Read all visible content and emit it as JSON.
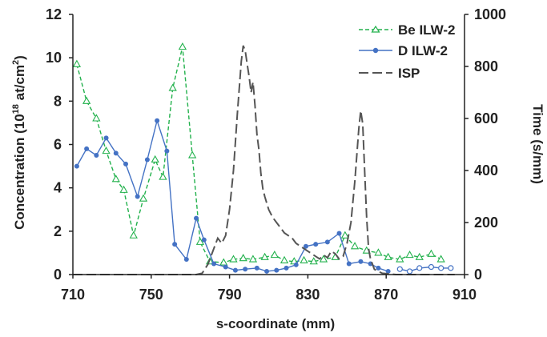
{
  "chart_data": {
    "type": "line",
    "xlabel": "s-coordinate (mm)",
    "ylabel_left_parts": [
      "Concentration (10",
      "18",
      " at/cm",
      "2",
      ")"
    ],
    "ylabel_right": "Time (s/mm)",
    "xlim": [
      710,
      910
    ],
    "ylim_left": [
      0,
      12
    ],
    "ylim_right": [
      0,
      1000
    ],
    "x_ticks": [
      710,
      750,
      790,
      830,
      870,
      910
    ],
    "y_ticks_left": [
      0,
      2,
      4,
      6,
      8,
      10,
      12
    ],
    "y_ticks_right": [
      0,
      200,
      400,
      600,
      800,
      1000
    ],
    "legend_position": "top-right",
    "colors": {
      "be": "#22b14c",
      "d": "#4472c4",
      "isp": "#555555",
      "axis": "#222222"
    },
    "series": [
      {
        "name": "Be ILW-2",
        "axis": "left",
        "style": "dashed",
        "marker": "open-triangle",
        "color": "#22b14c",
        "x": [
          712,
          717,
          722,
          727,
          732,
          736,
          741,
          746,
          752,
          756,
          761,
          766,
          771,
          775,
          780,
          787,
          792,
          797,
          802,
          808,
          813,
          818,
          823,
          828,
          833,
          838,
          844,
          849,
          854,
          860,
          866,
          871,
          877,
          882,
          887,
          893,
          898
        ],
        "y": [
          9.7,
          8.0,
          7.2,
          5.7,
          4.4,
          3.9,
          1.8,
          3.5,
          5.3,
          4.5,
          8.6,
          10.5,
          5.5,
          1.5,
          0.6,
          0.55,
          0.7,
          0.75,
          0.7,
          0.8,
          0.9,
          0.65,
          0.6,
          0.65,
          0.6,
          0.7,
          0.8,
          1.8,
          1.3,
          1.1,
          1.0,
          0.8,
          0.7,
          0.9,
          0.8,
          0.95,
          0.7
        ]
      },
      {
        "name": "D ILW-2",
        "axis": "left",
        "style": "solid",
        "marker": "filled-circle",
        "color": "#4472c4",
        "x": [
          712,
          717,
          722,
          727,
          732,
          737,
          743,
          748,
          753,
          758,
          762,
          768,
          773,
          777,
          782,
          788,
          793,
          798,
          804,
          809,
          814,
          819,
          824,
          829,
          834,
          840,
          846,
          851,
          857,
          862,
          866,
          871
        ],
        "y": [
          5.0,
          5.8,
          5.5,
          6.3,
          5.6,
          5.1,
          3.6,
          5.3,
          7.1,
          5.7,
          1.4,
          0.7,
          2.6,
          1.6,
          0.5,
          0.35,
          0.2,
          0.25,
          0.3,
          0.15,
          0.2,
          0.3,
          0.45,
          1.3,
          1.4,
          1.5,
          1.9,
          0.5,
          0.6,
          0.5,
          0.3,
          0.15
        ]
      },
      {
        "name": "D ILW-2 (open)",
        "axis": "left",
        "style": "solid",
        "marker": "open-circle",
        "color": "#4472c4",
        "x": [
          877,
          882,
          887,
          893,
          898,
          903
        ],
        "y": [
          0.25,
          0.15,
          0.3,
          0.35,
          0.3,
          0.3
        ]
      },
      {
        "name": "ISP",
        "axis": "right",
        "style": "long-dash",
        "marker": "none",
        "color": "#555555",
        "x": [
          710,
          715,
          720,
          725,
          730,
          735,
          740,
          745,
          750,
          755,
          760,
          765,
          770,
          773,
          776,
          779,
          782,
          784,
          786,
          788,
          790,
          792,
          794,
          796,
          797,
          798,
          799,
          800,
          801,
          802,
          803,
          804,
          805,
          806,
          807,
          808,
          810,
          812,
          814,
          816,
          818,
          820,
          822,
          824,
          826,
          828,
          830,
          832,
          834,
          836,
          838,
          840,
          842,
          844,
          846,
          848,
          850,
          852,
          854,
          856,
          857,
          858,
          859,
          860,
          861,
          862,
          864,
          868,
          875,
          885,
          895,
          905
        ],
        "y": [
          0,
          0,
          0,
          0,
          0,
          0,
          0,
          0,
          0,
          0,
          0,
          0,
          0,
          0,
          5,
          40,
          100,
          140,
          120,
          150,
          250,
          400,
          620,
          820,
          880,
          860,
          810,
          760,
          700,
          740,
          650,
          540,
          480,
          390,
          330,
          300,
          250,
          220,
          200,
          180,
          160,
          150,
          140,
          120,
          110,
          100,
          90,
          80,
          70,
          60,
          75,
          65,
          90,
          80,
          60,
          70,
          120,
          200,
          360,
          560,
          630,
          580,
          400,
          220,
          100,
          60,
          20,
          5,
          0,
          0,
          0,
          0
        ]
      }
    ],
    "legend_entries": [
      "Be ILW-2",
      "D ILW-2",
      "ISP"
    ]
  }
}
